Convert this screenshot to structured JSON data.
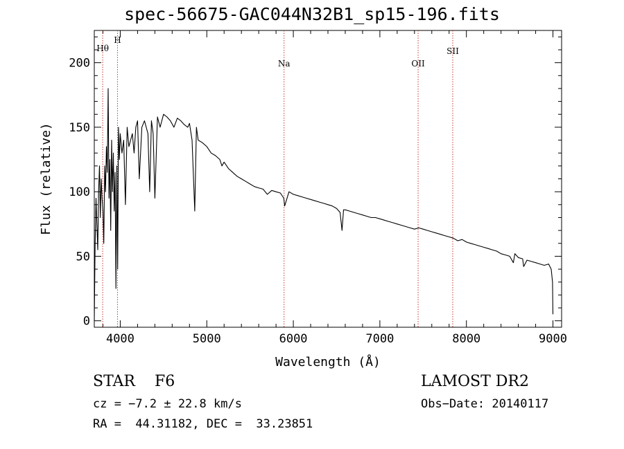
{
  "chart_data": {
    "type": "line",
    "title": "spec-56675-GAC044N32B1_sp15-196.fits",
    "xlabel": "Wavelength (Å)",
    "ylabel": "Flux (relative)",
    "xlim": [
      3700,
      9100
    ],
    "ylim": [
      -5,
      225
    ],
    "x_ticks": [
      "4000",
      "5000",
      "6000",
      "7000",
      "8000",
      "9000"
    ],
    "y_ticks": [
      "0",
      "50",
      "100",
      "150",
      "200"
    ],
    "grid": false,
    "lines": [
      {
        "label": "Hθ",
        "wavelength": 3797
      },
      {
        "label": "H",
        "wavelength": 3968
      },
      {
        "label": "Na",
        "wavelength": 5893
      },
      {
        "label": "OII",
        "wavelength": 7442
      },
      {
        "label": "SII",
        "wavelength": 7842
      }
    ],
    "line_color": "#c0392b",
    "x": [
      3700,
      3710,
      3720,
      3730,
      3740,
      3750,
      3760,
      3770,
      3780,
      3790,
      3800,
      3810,
      3820,
      3830,
      3840,
      3850,
      3860,
      3870,
      3880,
      3890,
      3900,
      3910,
      3920,
      3930,
      3940,
      3950,
      3960,
      3970,
      3980,
      3990,
      4000,
      4020,
      4040,
      4060,
      4080,
      4100,
      4120,
      4140,
      4160,
      4180,
      4200,
      4220,
      4250,
      4280,
      4300,
      4320,
      4340,
      4360,
      4380,
      4400,
      4430,
      4460,
      4500,
      4540,
      4580,
      4620,
      4660,
      4700,
      4740,
      4780,
      4800,
      4830,
      4861,
      4880,
      4900,
      4950,
      5000,
      5050,
      5100,
      5150,
      5175,
      5200,
      5250,
      5300,
      5350,
      5400,
      5450,
      5500,
      5550,
      5600,
      5650,
      5700,
      5750,
      5800,
      5850,
      5890,
      5900,
      5950,
      6000,
      6050,
      6100,
      6150,
      6200,
      6250,
      6300,
      6350,
      6400,
      6450,
      6500,
      6540,
      6563,
      6580,
      6600,
      6650,
      6700,
      6750,
      6800,
      6850,
      6900,
      6950,
      7000,
      7050,
      7100,
      7150,
      7200,
      7250,
      7300,
      7350,
      7400,
      7450,
      7500,
      7550,
      7600,
      7650,
      7700,
      7750,
      7800,
      7850,
      7900,
      7950,
      8000,
      8050,
      8100,
      8150,
      8200,
      8250,
      8300,
      8350,
      8400,
      8450,
      8500,
      8542,
      8560,
      8600,
      8650,
      8662,
      8700,
      8750,
      8800,
      8850,
      8900,
      8950,
      8980,
      8995,
      9000
    ],
    "y": [
      0,
      60,
      95,
      75,
      55,
      100,
      120,
      80,
      110,
      95,
      85,
      60,
      120,
      100,
      135,
      115,
      180,
      95,
      125,
      70,
      140,
      100,
      130,
      85,
      115,
      25,
      120,
      40,
      150,
      125,
      145,
      130,
      140,
      90,
      150,
      135,
      140,
      145,
      130,
      150,
      155,
      110,
      150,
      155,
      150,
      145,
      100,
      155,
      145,
      95,
      158,
      150,
      160,
      158,
      155,
      150,
      157,
      155,
      152,
      150,
      153,
      140,
      85,
      150,
      140,
      138,
      135,
      130,
      128,
      125,
      120,
      123,
      118,
      115,
      112,
      110,
      108,
      106,
      104,
      103,
      102,
      98,
      101,
      100,
      99,
      95,
      89,
      100,
      98,
      97,
      96,
      95,
      94,
      93,
      92,
      91,
      90,
      89,
      87,
      84,
      70,
      86,
      86,
      85,
      84,
      83,
      82,
      81,
      80,
      80,
      79,
      78,
      77,
      76,
      75,
      74,
      73,
      72,
      71,
      72,
      71,
      70,
      69,
      68,
      67,
      66,
      65,
      64,
      62,
      63,
      61,
      60,
      59,
      58,
      57,
      56,
      55,
      54,
      52,
      51,
      50,
      45,
      52,
      49,
      48,
      42,
      47,
      46,
      45,
      44,
      43,
      44,
      40,
      30,
      5
    ]
  },
  "footer": {
    "object": "STAR    F6",
    "survey": "LAMOST DR2",
    "cz": "cz = −7.2 ± 22.8 km/s",
    "obsdate": "Obs−Date: 20140117",
    "radec": "RA =  44.31182, DEC =  33.23851"
  }
}
